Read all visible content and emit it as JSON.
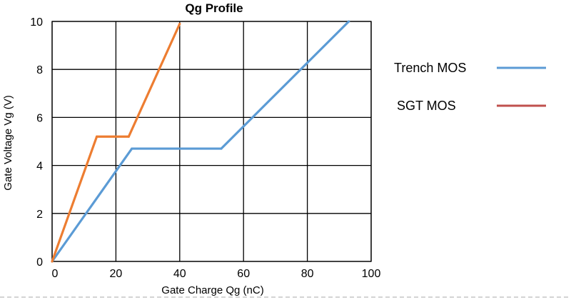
{
  "chart_data": {
    "type": "line",
    "title": "Qg Profile",
    "xlabel": "Gate Charge Qg (nC)",
    "ylabel": "Gate Voltage Vg (V)",
    "xlim": [
      0,
      100
    ],
    "ylim": [
      0,
      10
    ],
    "xticks": [
      "0",
      "20",
      "40",
      "60",
      "80",
      "100"
    ],
    "yticks": [
      "0",
      "2",
      "4",
      "6",
      "8",
      "10"
    ],
    "grid": true,
    "legend_position": "right",
    "series": [
      {
        "name": "Trench MOS",
        "color": "#5b9bd5",
        "x": [
          0,
          25,
          53,
          93
        ],
        "y": [
          0,
          4.7,
          4.7,
          10
        ]
      },
      {
        "name": "SGT  MOS",
        "color": "#ed7d31",
        "legend_color": "#c0504d",
        "x": [
          0,
          14,
          24,
          40
        ],
        "y": [
          0,
          5.2,
          5.2,
          9.9
        ]
      }
    ]
  }
}
